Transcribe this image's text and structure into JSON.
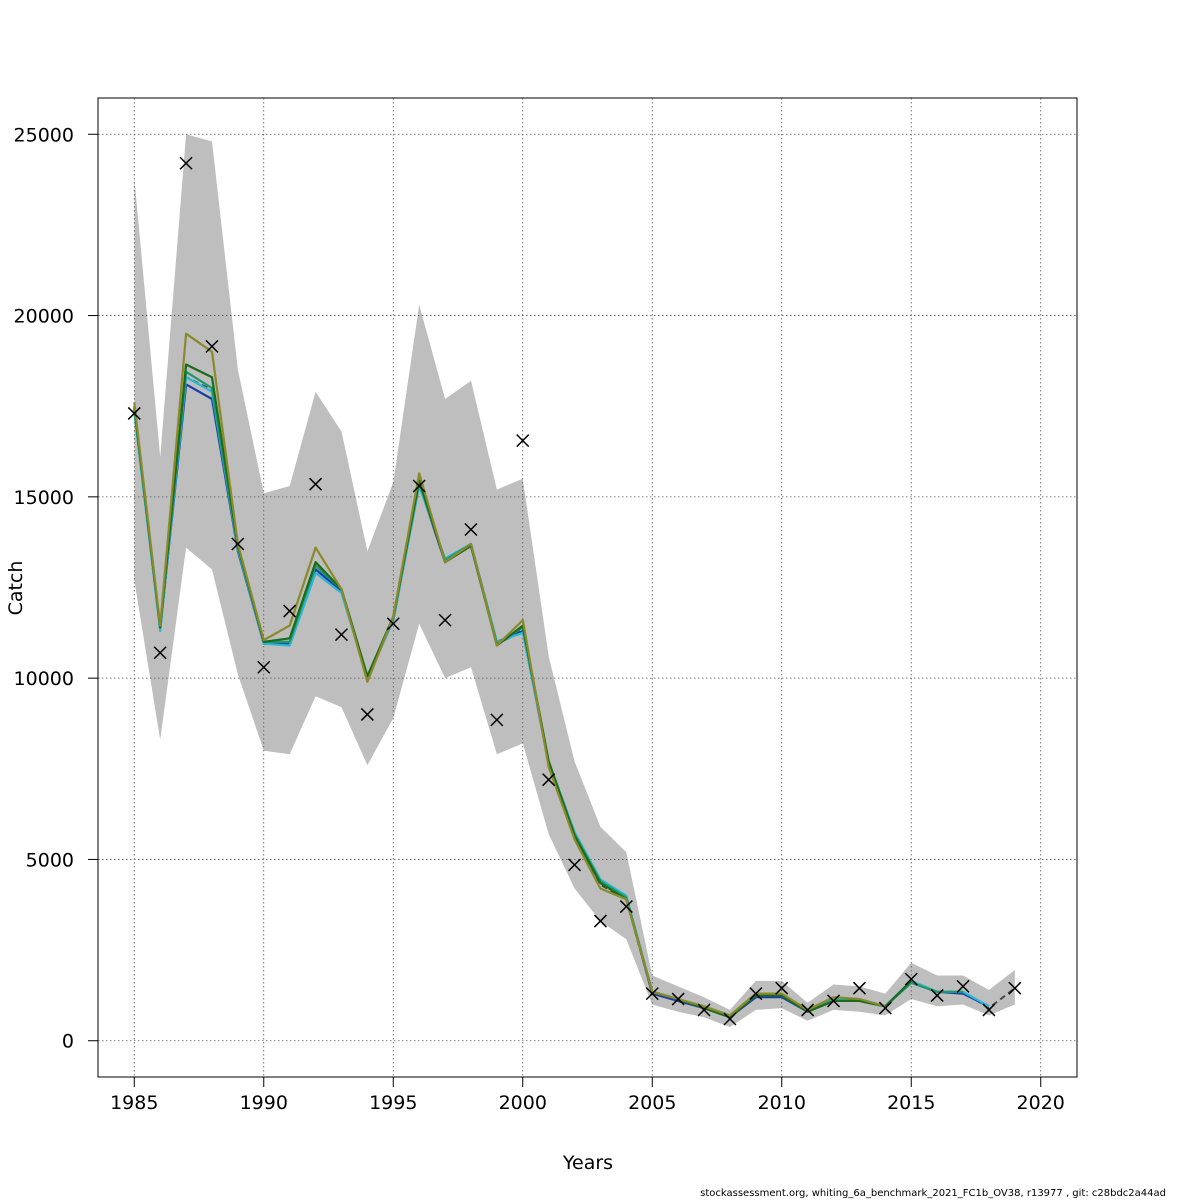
{
  "chart_data": {
    "type": "line",
    "xlabel": "Years",
    "ylabel": "Catch",
    "xlim": [
      1983.6,
      2021.4
    ],
    "ylim": [
      -1000,
      26000
    ],
    "x_ticks": [
      1985,
      1990,
      1995,
      2000,
      2005,
      2010,
      2015,
      2020
    ],
    "y_ticks": [
      0,
      5000,
      10000,
      15000,
      20000,
      25000
    ],
    "x_tick_labels": [
      "1985",
      "1990",
      "1995",
      "2000",
      "2005",
      "2010",
      "2015",
      "2020"
    ],
    "y_tick_labels": [
      "0",
      "5000",
      "10000",
      "15000",
      "20000",
      "25000"
    ],
    "grid": true,
    "years": [
      1985,
      1986,
      1987,
      1988,
      1989,
      1990,
      1991,
      1992,
      1993,
      1994,
      1995,
      1996,
      1997,
      1998,
      1999,
      2000,
      2001,
      2002,
      2003,
      2004,
      2005,
      2006,
      2007,
      2008,
      2009,
      2010,
      2011,
      2012,
      2013,
      2014,
      2015,
      2016,
      2017,
      2018,
      2019
    ],
    "confidence_band": {
      "color": "#bebebe",
      "upper": [
        23800,
        16100,
        25000,
        24800,
        18500,
        15100,
        15300,
        17900,
        16800,
        13500,
        15400,
        20300,
        17700,
        18200,
        15200,
        15500,
        10600,
        7700,
        5900,
        5200,
        1800,
        1500,
        1200,
        850,
        1650,
        1650,
        1050,
        1550,
        1500,
        1300,
        2150,
        1800,
        1800,
        1400,
        1950
      ],
      "lower": [
        12700,
        8300,
        13600,
        13000,
        10100,
        8000,
        7900,
        9500,
        9200,
        7600,
        8900,
        11500,
        10000,
        10300,
        7900,
        8200,
        5700,
        4200,
        3300,
        2800,
        1000,
        800,
        650,
        380,
        850,
        900,
        550,
        850,
        800,
        700,
        1150,
        950,
        1000,
        700,
        1000
      ]
    },
    "observed": {
      "marker": "x",
      "color": "#000000",
      "values": [
        17300,
        10700,
        24200,
        19150,
        13700,
        10300,
        11850,
        15350,
        11200,
        9000,
        11500,
        15300,
        11600,
        14100,
        8850,
        16550,
        7200,
        4850,
        3300,
        3700,
        1300,
        1150,
        850,
        600,
        1300,
        1450,
        850,
        1100,
        1450,
        900,
        1700,
        1250,
        1500,
        850,
        1450
      ]
    },
    "series": [
      {
        "color": "#4a4a4a",
        "dashed": true,
        "values": [
          17450,
          11400,
          18300,
          17950,
          13600,
          11000,
          11000,
          13100,
          12450,
          10000,
          11650,
          15400,
          13250,
          13700,
          11000,
          11350,
          7650,
          5650,
          4300,
          3900,
          1300,
          1100,
          900,
          650,
          1200,
          1250,
          800,
          1100,
          1100,
          950,
          1600,
          1350,
          1350,
          900,
          1450
        ]
      },
      {
        "color": "#1a3ea8",
        "values": [
          17400,
          11350,
          18100,
          17700,
          13500,
          10950,
          10950,
          13000,
          12400,
          10000,
          11600,
          15350,
          13200,
          13650,
          10950,
          11300,
          7650,
          5650,
          4350,
          3950,
          1300,
          1100,
          900,
          650,
          1200,
          1200,
          800,
          1100,
          1100,
          950,
          1600,
          1350,
          1300,
          950,
          null
        ]
      },
      {
        "color": "#2bb5d6",
        "values": [
          17350,
          11300,
          18300,
          17900,
          13550,
          10950,
          10900,
          12900,
          12350,
          10000,
          11600,
          15300,
          13300,
          13700,
          11000,
          11250,
          7700,
          5750,
          4450,
          4000,
          1350,
          1150,
          950,
          700,
          1250,
          1250,
          850,
          1150,
          1150,
          950,
          1650,
          1350,
          1350,
          950,
          null
        ]
      },
      {
        "color": "#1e9a6a",
        "values": [
          17450,
          11400,
          18450,
          18000,
          13600,
          11000,
          11000,
          13100,
          12450,
          10050,
          11650,
          15400,
          13250,
          13700,
          10950,
          11400,
          7700,
          5700,
          4400,
          3950,
          1350,
          1150,
          900,
          650,
          1250,
          1250,
          800,
          1100,
          1100,
          950,
          1600,
          1350,
          1350,
          null,
          null
        ]
      },
      {
        "color": "#1a6b1a",
        "values": [
          17500,
          11400,
          18650,
          18300,
          13650,
          11000,
          11100,
          13200,
          12450,
          10050,
          11700,
          15450,
          13200,
          13650,
          10900,
          11450,
          7700,
          5650,
          4350,
          3900,
          1350,
          1150,
          900,
          650,
          1250,
          1250,
          800,
          1100,
          1100,
          950,
          1650,
          null,
          null,
          null,
          null
        ]
      },
      {
        "color": "#8a8a2a",
        "values": [
          17600,
          11450,
          19500,
          19000,
          13700,
          11050,
          11450,
          13600,
          12450,
          9900,
          11700,
          15650,
          13200,
          13700,
          10900,
          11600,
          7550,
          5550,
          4200,
          3900,
          1350,
          1150,
          950,
          700,
          1300,
          1300,
          850,
          1200,
          1150,
          950,
          null,
          null,
          null,
          null,
          null
        ]
      }
    ]
  },
  "footer": {
    "note": "stockassessment.org, whiting_6a_benchmark_2021_FC1b_OV38, r13977 , git: c28bdc2a44ad"
  }
}
